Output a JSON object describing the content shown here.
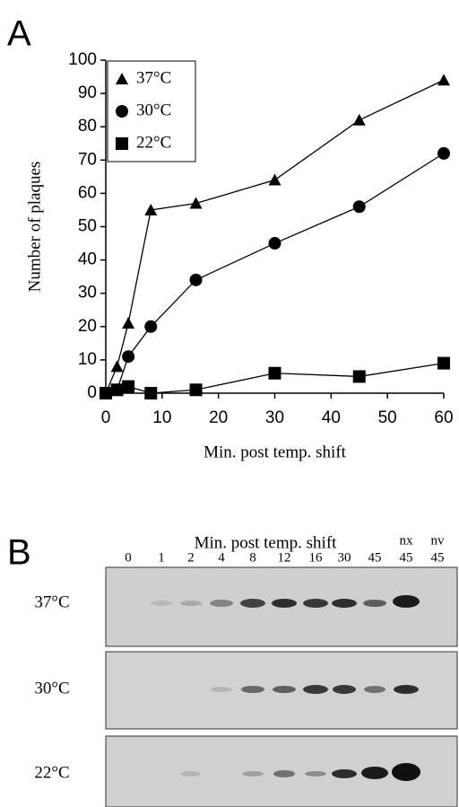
{
  "chart_data": {
    "type": "line",
    "panel_label": "A",
    "x": [
      0,
      2,
      4,
      8,
      16,
      30,
      45,
      60
    ],
    "series": [
      {
        "name": "37°C",
        "marker": "triangle",
        "color": "#000000",
        "values": [
          0,
          8,
          21,
          55,
          57,
          64,
          82,
          94
        ]
      },
      {
        "name": "30°C",
        "marker": "circle",
        "color": "#000000",
        "values": [
          0,
          1,
          11,
          20,
          34,
          45,
          56,
          72
        ]
      },
      {
        "name": "22°C",
        "marker": "square",
        "color": "#000000",
        "values": [
          0,
          1,
          2,
          0,
          1,
          6,
          5,
          9
        ]
      }
    ],
    "x_label": "Min. post temp. shift",
    "y_label": "Number of plaques",
    "xlim": [
      0,
      60
    ],
    "xticks": [
      0,
      10,
      20,
      30,
      40,
      50,
      60
    ],
    "ylim": [
      0,
      100
    ],
    "yticks": [
      0,
      10,
      20,
      30,
      40,
      50,
      60,
      70,
      80,
      90,
      100
    ],
    "legend": "upper left",
    "grid": false
  },
  "blot": {
    "panel_label": "B",
    "title": "Min. post temp. shift",
    "lanes": [
      "0",
      "1",
      "2",
      "4",
      "8",
      "12",
      "16",
      "30",
      "45"
    ],
    "marked_lanes": [
      {
        "note": "nx",
        "lane": "45"
      },
      {
        "note": "nv",
        "lane": "45"
      }
    ],
    "rows": [
      "37°C",
      "30°C",
      "22°C"
    ]
  }
}
